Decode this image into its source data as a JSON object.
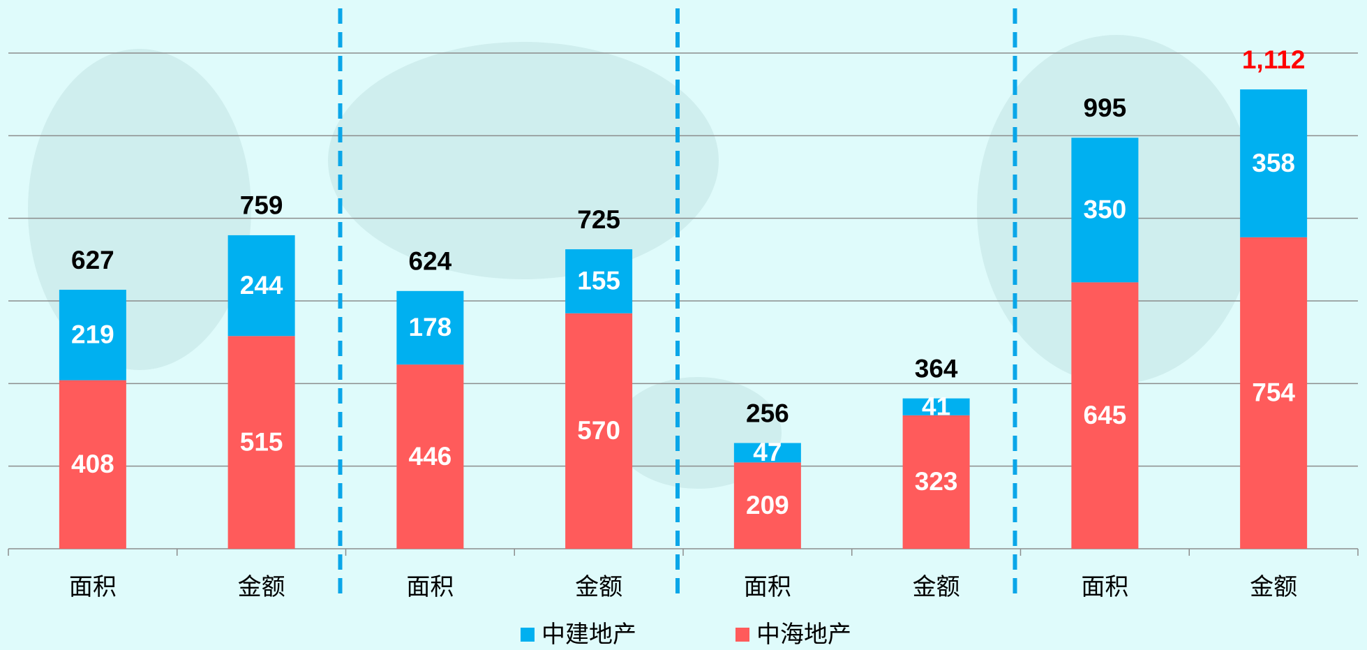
{
  "chart_data": {
    "type": "stacked_bar",
    "categories": [
      "面积",
      "金额",
      "面积",
      "金额",
      "面积",
      "金额",
      "面积",
      "金额"
    ],
    "series": [
      {
        "name": "中海地产",
        "color": "#ff5b5b",
        "values": [
          408,
          515,
          446,
          570,
          209,
          323,
          645,
          754
        ]
      },
      {
        "name": "中建地产",
        "color": "#00b0f0",
        "values": [
          219,
          244,
          178,
          155,
          47,
          41,
          350,
          358
        ]
      }
    ],
    "totals": {
      "values": [
        627,
        759,
        624,
        725,
        256,
        364,
        995,
        1112
      ],
      "value_labels": [
        "627",
        "759",
        "624",
        "725",
        "256",
        "364",
        "995",
        "1,112"
      ],
      "colors": [
        "#000000",
        "#000000",
        "#000000",
        "#000000",
        "#000000",
        "#000000",
        "#000000",
        "#ff0000"
      ]
    },
    "ylim": [
      0,
      1200
    ],
    "yticks": [
      0,
      200,
      400,
      600,
      800,
      1000,
      1200
    ],
    "grid": true,
    "legend": "bottom"
  }
}
